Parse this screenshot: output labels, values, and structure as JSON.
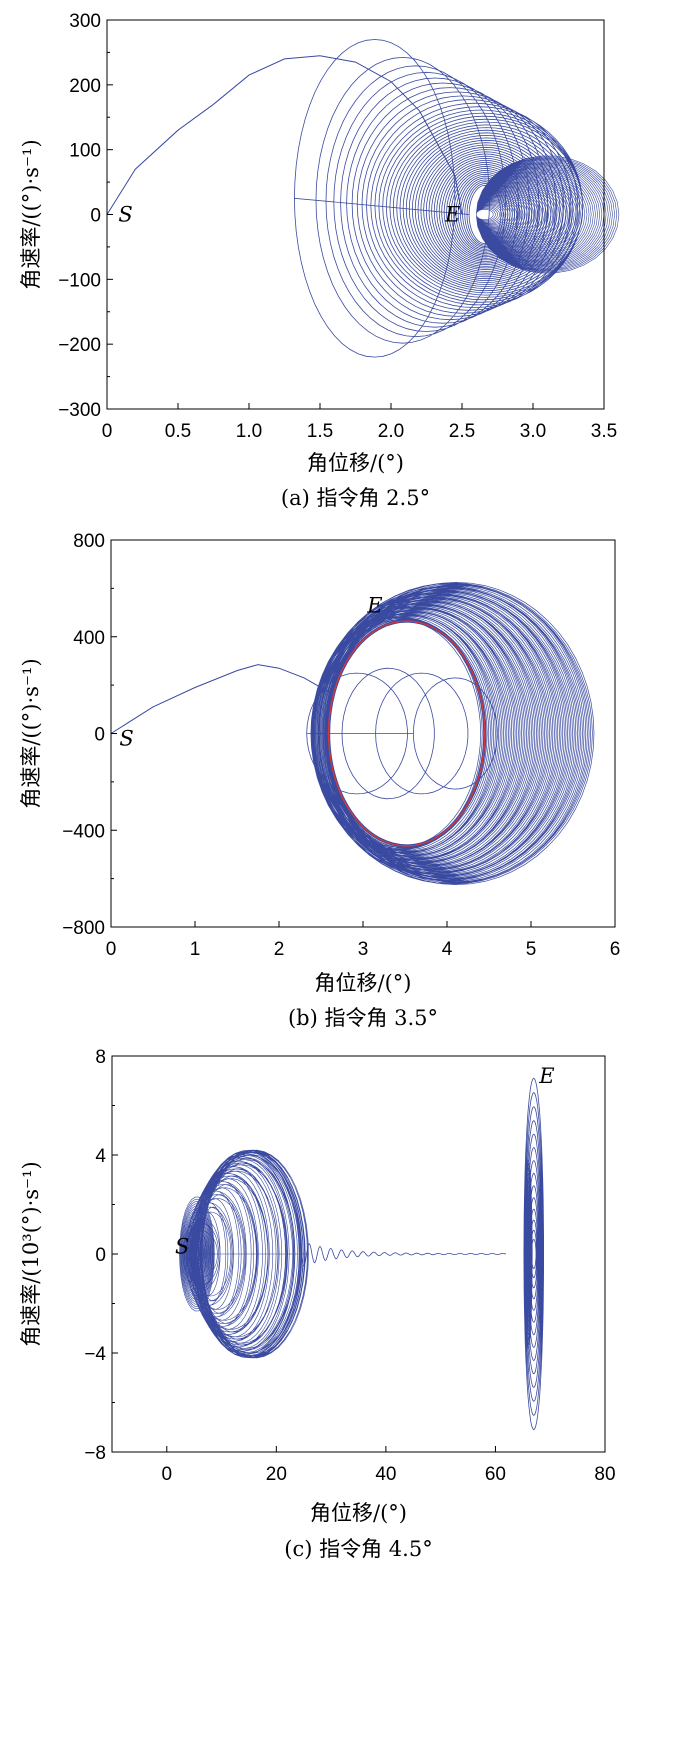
{
  "chart_data": [
    {
      "type": "line",
      "panel": "a",
      "caption": "(a) 指令角 2.5°",
      "xlabel": "角位移/(°)",
      "ylabel": "角速率/((°)·s⁻¹)",
      "xlim": [
        0,
        3.5
      ],
      "ylim": [
        -300,
        300
      ],
      "xticks": [
        0,
        0.5,
        1.0,
        1.5,
        2.0,
        2.5,
        3.0,
        3.5
      ],
      "xtick_labels": [
        "0",
        "0.5",
        "1.0",
        "1.5",
        "2.0",
        "2.5",
        "3.0",
        "3.5"
      ],
      "yticks": [
        -300,
        -200,
        -100,
        0,
        100,
        200,
        300
      ],
      "ytick_labels": [
        "−300",
        "−200",
        "−100",
        "0",
        "100",
        "200",
        "300"
      ],
      "annotations": [
        {
          "text": "S",
          "x": 0.08,
          "y": 0
        },
        {
          "text": "E",
          "x": 2.38,
          "y": 0
        }
      ],
      "series_color": "#3a4aa0",
      "start": [
        0,
        0
      ],
      "end": [
        2.5,
        0
      ],
      "points": [
        [
          0,
          0
        ],
        [
          0.2,
          70
        ],
        [
          0.5,
          130
        ],
        [
          0.75,
          170
        ],
        [
          1.0,
          215
        ],
        [
          1.25,
          240
        ],
        [
          1.5,
          245
        ],
        [
          1.75,
          235
        ],
        [
          2.0,
          205
        ],
        [
          2.2,
          160
        ],
        [
          2.45,
          60
        ],
        [
          2.5,
          0
        ]
      ],
      "first_loop": {
        "center": [
          1.88,
          35
        ],
        "rx": 0.58,
        "ry_top": 210,
        "ry_bottom": 210
      },
      "converge_x": 2.55,
      "outer_x": 3.35,
      "grid": false
    },
    {
      "type": "line",
      "panel": "b",
      "caption": "(b) 指令角 3.5°",
      "xlabel": "角位移/(°)",
      "ylabel": "角速率/((°)·s⁻¹)",
      "xlim": [
        0,
        6
      ],
      "ylim": [
        -800,
        800
      ],
      "xticks": [
        0,
        1,
        2,
        3,
        4,
        5,
        6
      ],
      "xtick_labels": [
        "0",
        "1",
        "2",
        "3",
        "4",
        "5",
        "6"
      ],
      "yticks": [
        -800,
        -400,
        0,
        400,
        800
      ],
      "ytick_labels": [
        "−800",
        "−400",
        "0",
        "400",
        "800"
      ],
      "annotations": [
        {
          "text": "S",
          "x": 0.1,
          "y": -20
        },
        {
          "text": "E",
          "x": 3.05,
          "y": 530
        }
      ],
      "series_color": "#3a4aa0",
      "limit_cycle_color": "#d23a3a",
      "limit_cycle": {
        "center": [
          3.52,
          0
        ],
        "rx": 0.93,
        "ry": 465
      },
      "points": [
        [
          0,
          0
        ],
        [
          0.5,
          110
        ],
        [
          1.0,
          190
        ],
        [
          1.5,
          260
        ],
        [
          1.75,
          285
        ],
        [
          2.0,
          270
        ],
        [
          2.3,
          230
        ],
        [
          2.6,
          170
        ]
      ],
      "outer_x": 5.75,
      "outer_y": 625,
      "grid": false
    },
    {
      "type": "line",
      "panel": "c",
      "caption": "(c) 指令角 4.5°",
      "xlabel": "角位移/(°)",
      "ylabel": "角速率/(10³(°)·s⁻¹)",
      "xlim": [
        -10,
        80
      ],
      "ylim": [
        -8,
        8
      ],
      "xticks": [
        0,
        20,
        40,
        60,
        80
      ],
      "xtick_labels": [
        "0",
        "20",
        "40",
        "60",
        "80"
      ],
      "yticks": [
        -8,
        -4,
        0,
        4,
        8
      ],
      "ytick_labels": [
        "−8",
        "−4",
        "0",
        "4",
        "8"
      ],
      "annotations": [
        {
          "text": "S",
          "x": 1.5,
          "y": 0.3
        },
        {
          "text": "E",
          "x": 68,
          "y": 7.2
        }
      ],
      "series_color": "#3a4aa0",
      "cluster": {
        "x_min": 0,
        "x_max": 25,
        "y_max": 4.2
      },
      "bridge": {
        "x_from": 24,
        "x_to": 62
      },
      "end_spiral": {
        "center": [
          67,
          0
        ],
        "rx": 1.8,
        "ry": 7.1
      },
      "grid": false
    }
  ]
}
